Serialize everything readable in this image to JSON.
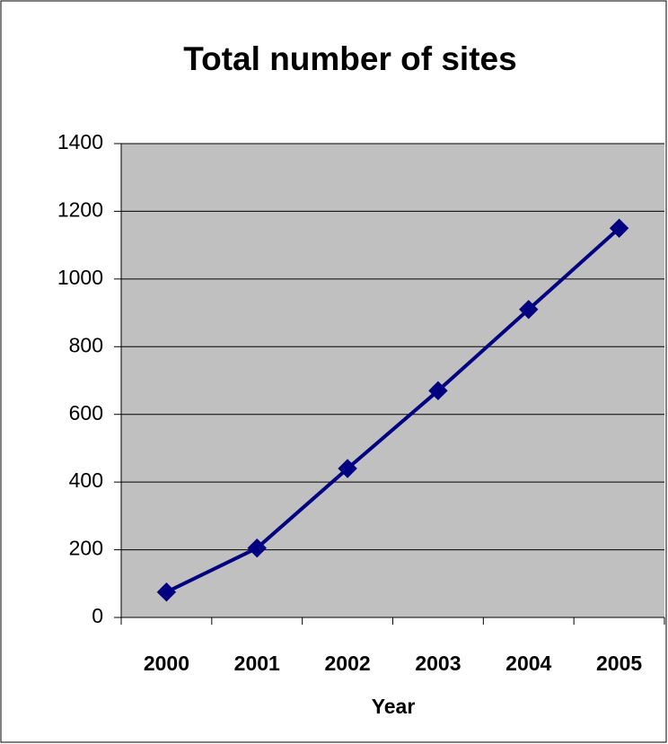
{
  "chart_data": {
    "type": "line",
    "title": "Total number of sites",
    "x_label": "Year",
    "categories": [
      "2000",
      "2001",
      "2002",
      "2003",
      "2004",
      "2005"
    ],
    "series": [
      {
        "name": "Total number of sites",
        "color": "#000080",
        "values": [
          75,
          205,
          440,
          670,
          910,
          1150
        ]
      }
    ],
    "ylim": [
      0,
      1400
    ],
    "yticks": [
      0,
      200,
      400,
      600,
      800,
      1000,
      1200,
      1400
    ],
    "grid": true,
    "legend": false,
    "plot_background": "#c0c0c0"
  }
}
